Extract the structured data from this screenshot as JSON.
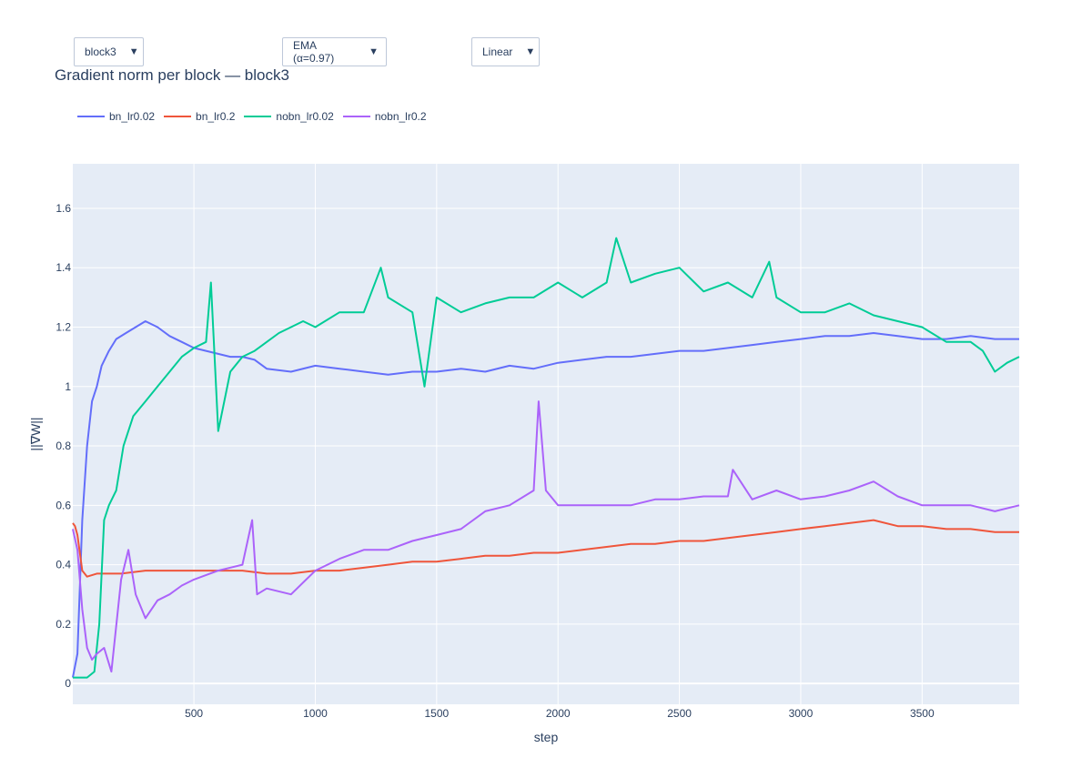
{
  "controls": {
    "block_select": {
      "value": "block3"
    },
    "smoothing_select": {
      "value": "EMA (α=0.97)"
    },
    "scale_select": {
      "value": "Linear"
    },
    "arrow_glyph": "▼"
  },
  "chart_data": {
    "type": "line",
    "title": "Gradient norm per block — block3",
    "xlabel": "step",
    "ylabel": "||∇W||",
    "xlim": [
      1,
      3900
    ],
    "ylim": [
      -0.07,
      1.75
    ],
    "xticks": [
      500,
      1000,
      1500,
      2000,
      2500,
      3000,
      3500
    ],
    "yticks": [
      0,
      0.2,
      0.4,
      0.6,
      0.8,
      1,
      1.2,
      1.4,
      1.6
    ],
    "grid": true,
    "legend_position": "top-left",
    "plot_background": "#e5ecf6",
    "series": [
      {
        "name": "bn_lr0.02",
        "color": "#636efa",
        "x": [
          1,
          20,
          40,
          60,
          80,
          100,
          120,
          150,
          180,
          220,
          260,
          300,
          350,
          400,
          450,
          500,
          550,
          600,
          650,
          700,
          750,
          800,
          900,
          1000,
          1100,
          1200,
          1300,
          1400,
          1500,
          1600,
          1700,
          1800,
          1900,
          2000,
          2100,
          2200,
          2300,
          2400,
          2500,
          2600,
          2700,
          2800,
          2900,
          3000,
          3100,
          3200,
          3300,
          3400,
          3500,
          3600,
          3700,
          3800,
          3900
        ],
        "y": [
          0.02,
          0.1,
          0.55,
          0.8,
          0.95,
          1.0,
          1.07,
          1.12,
          1.16,
          1.18,
          1.2,
          1.22,
          1.2,
          1.17,
          1.15,
          1.13,
          1.12,
          1.11,
          1.1,
          1.1,
          1.09,
          1.06,
          1.05,
          1.07,
          1.06,
          1.05,
          1.04,
          1.05,
          1.05,
          1.06,
          1.05,
          1.07,
          1.06,
          1.08,
          1.09,
          1.1,
          1.1,
          1.11,
          1.12,
          1.12,
          1.13,
          1.14,
          1.15,
          1.16,
          1.17,
          1.17,
          1.18,
          1.17,
          1.16,
          1.16,
          1.17,
          1.16,
          1.16
        ]
      },
      {
        "name": "bn_lr0.2",
        "color": "#ef553b",
        "x": [
          1,
          10,
          20,
          40,
          60,
          100,
          200,
          300,
          400,
          500,
          600,
          700,
          800,
          900,
          1000,
          1100,
          1200,
          1300,
          1400,
          1500,
          1600,
          1700,
          1800,
          1900,
          2000,
          2100,
          2200,
          2300,
          2400,
          2500,
          2600,
          2700,
          2800,
          2900,
          3000,
          3100,
          3200,
          3300,
          3400,
          3500,
          3600,
          3700,
          3800,
          3900
        ],
        "y": [
          0.54,
          0.53,
          0.5,
          0.38,
          0.36,
          0.37,
          0.37,
          0.38,
          0.38,
          0.38,
          0.38,
          0.38,
          0.37,
          0.37,
          0.38,
          0.38,
          0.39,
          0.4,
          0.41,
          0.41,
          0.42,
          0.43,
          0.43,
          0.44,
          0.44,
          0.45,
          0.46,
          0.47,
          0.47,
          0.48,
          0.48,
          0.49,
          0.5,
          0.51,
          0.52,
          0.53,
          0.54,
          0.55,
          0.53,
          0.53,
          0.52,
          0.52,
          0.51,
          0.51
        ]
      },
      {
        "name": "nobn_lr0.02",
        "color": "#00cc96",
        "x": [
          1,
          30,
          60,
          90,
          110,
          130,
          150,
          180,
          210,
          250,
          300,
          350,
          400,
          450,
          500,
          550,
          570,
          600,
          650,
          700,
          750,
          800,
          850,
          900,
          950,
          1000,
          1100,
          1200,
          1270,
          1300,
          1400,
          1450,
          1500,
          1600,
          1700,
          1800,
          1900,
          2000,
          2100,
          2200,
          2240,
          2300,
          2400,
          2500,
          2600,
          2700,
          2800,
          2870,
          2900,
          3000,
          3100,
          3200,
          3300,
          3400,
          3500,
          3600,
          3700,
          3750,
          3800,
          3850,
          3900
        ],
        "y": [
          0.02,
          0.02,
          0.02,
          0.04,
          0.2,
          0.55,
          0.6,
          0.65,
          0.8,
          0.9,
          0.95,
          1.0,
          1.05,
          1.1,
          1.13,
          1.15,
          1.35,
          0.85,
          1.05,
          1.1,
          1.12,
          1.15,
          1.18,
          1.2,
          1.22,
          1.2,
          1.25,
          1.25,
          1.4,
          1.3,
          1.25,
          1.0,
          1.3,
          1.25,
          1.28,
          1.3,
          1.3,
          1.35,
          1.3,
          1.35,
          1.5,
          1.35,
          1.38,
          1.4,
          1.32,
          1.35,
          1.3,
          1.42,
          1.3,
          1.25,
          1.25,
          1.28,
          1.24,
          1.22,
          1.2,
          1.15,
          1.15,
          1.12,
          1.05,
          1.08,
          1.1
        ]
      },
      {
        "name": "nobn_lr0.2",
        "color": "#ab63fa",
        "x": [
          1,
          20,
          40,
          60,
          80,
          100,
          130,
          160,
          200,
          230,
          260,
          300,
          350,
          400,
          450,
          500,
          600,
          700,
          740,
          760,
          800,
          900,
          1000,
          1100,
          1200,
          1300,
          1400,
          1500,
          1600,
          1700,
          1800,
          1900,
          1920,
          1950,
          2000,
          2100,
          2200,
          2300,
          2400,
          2500,
          2600,
          2700,
          2720,
          2800,
          2900,
          3000,
          3100,
          3200,
          3300,
          3400,
          3500,
          3600,
          3700,
          3800,
          3900
        ],
        "y": [
          0.52,
          0.45,
          0.25,
          0.12,
          0.08,
          0.1,
          0.12,
          0.04,
          0.35,
          0.45,
          0.3,
          0.22,
          0.28,
          0.3,
          0.33,
          0.35,
          0.38,
          0.4,
          0.55,
          0.3,
          0.32,
          0.3,
          0.38,
          0.42,
          0.45,
          0.45,
          0.48,
          0.5,
          0.52,
          0.58,
          0.6,
          0.65,
          0.95,
          0.65,
          0.6,
          0.6,
          0.6,
          0.6,
          0.62,
          0.62,
          0.63,
          0.63,
          0.72,
          0.62,
          0.65,
          0.62,
          0.63,
          0.65,
          0.68,
          0.63,
          0.6,
          0.6,
          0.6,
          0.58,
          0.6
        ]
      }
    ]
  }
}
